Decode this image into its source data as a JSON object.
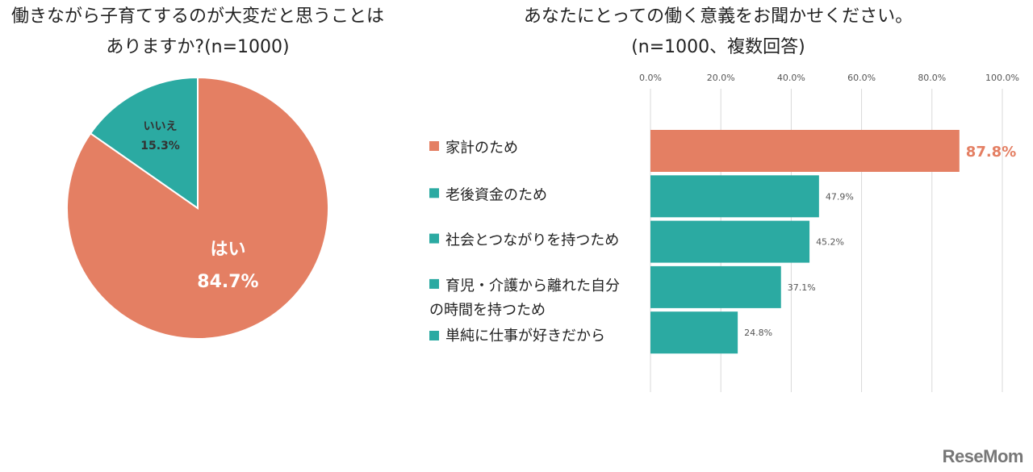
{
  "chart_data": [
    {
      "type": "pie",
      "title_line1": "働きながら子育てするのが大変だと思うことは",
      "title_line2": "ありますか?(n=1000)",
      "slices": [
        {
          "label": "はい",
          "value": 84.7,
          "display": "84.7%",
          "color": "#E47F63"
        },
        {
          "label": "いいえ",
          "value": 15.3,
          "display": "15.3%",
          "color": "#2BAAA2"
        }
      ]
    },
    {
      "type": "bar",
      "orientation": "horizontal",
      "title_line1": "あなたにとっての働く意義をお聞かせください。",
      "title_line2": "(n=1000、複数回答)",
      "xlim": [
        0,
        100
      ],
      "ticks": [
        "0.0%",
        "20.0%",
        "40.0%",
        "60.0%",
        "80.0%",
        "100.0%"
      ],
      "grid": true,
      "categories": [
        [
          "家計のため"
        ],
        [
          "老後資金のため"
        ],
        [
          "社会とつながりを持つため"
        ],
        [
          "育児・介護から離れた自分",
          "の時間を持つため"
        ],
        [
          "単純に仕事が好きだから"
        ]
      ],
      "values": [
        87.8,
        47.9,
        45.2,
        37.1,
        24.8
      ],
      "labels": [
        "87.8%",
        "47.9%",
        "45.2%",
        "37.1%",
        "24.8%"
      ],
      "colors": [
        "#E47F63",
        "#2BAAA2",
        "#2BAAA2",
        "#2BAAA2",
        "#2BAAA2"
      ]
    }
  ],
  "logo": "ReseMom"
}
